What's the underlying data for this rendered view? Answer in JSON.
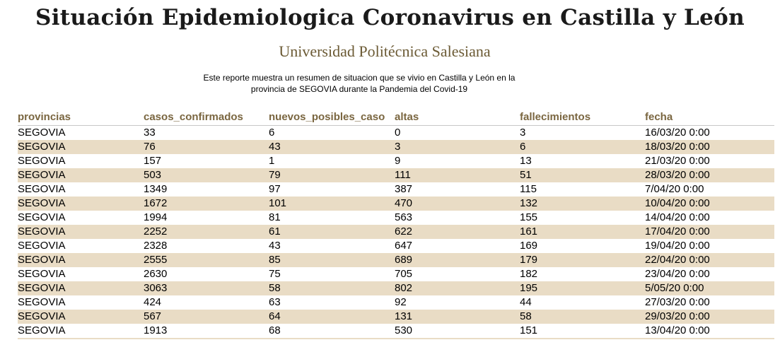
{
  "report": {
    "title": "Situación Epidemiologica Coronavirus en Castilla y León",
    "subtitle": "Universidad Politécnica Salesiana",
    "description_line1": "Este reporte muestra un resumen de situacion que se vivio en Castilla y León en la",
    "description_line2": "provincia de SEGOVIA durante la Pandemia del Covid-19"
  },
  "colors": {
    "header_text": "#7a6640",
    "subtitle_text": "#6b5a34",
    "alt_row_background": "#e9dcc5"
  },
  "table": {
    "columns": [
      "provincias",
      "casos_confirmados",
      "nuevos_posibles_caso",
      "altas",
      "fallecimientos",
      "fecha"
    ],
    "rows": [
      [
        "SEGOVIA",
        "33",
        "6",
        "0",
        "3",
        "16/03/20 0:00"
      ],
      [
        "SEGOVIA",
        "76",
        "43",
        "3",
        "6",
        "18/03/20 0:00"
      ],
      [
        "SEGOVIA",
        "157",
        "1",
        "9",
        "13",
        "21/03/20 0:00"
      ],
      [
        "SEGOVIA",
        "503",
        "79",
        "111",
        "51",
        "28/03/20 0:00"
      ],
      [
        "SEGOVIA",
        "1349",
        "97",
        "387",
        "115",
        "7/04/20 0:00"
      ],
      [
        "SEGOVIA",
        "1672",
        "101",
        "470",
        "132",
        "10/04/20 0:00"
      ],
      [
        "SEGOVIA",
        "1994",
        "81",
        "563",
        "155",
        "14/04/20 0:00"
      ],
      [
        "SEGOVIA",
        "2252",
        "61",
        "622",
        "161",
        "17/04/20 0:00"
      ],
      [
        "SEGOVIA",
        "2328",
        "43",
        "647",
        "169",
        "19/04/20 0:00"
      ],
      [
        "SEGOVIA",
        "2555",
        "85",
        "689",
        "179",
        "22/04/20 0:00"
      ],
      [
        "SEGOVIA",
        "2630",
        "75",
        "705",
        "182",
        "23/04/20 0:00"
      ],
      [
        "SEGOVIA",
        "3063",
        "58",
        "802",
        "195",
        "5/05/20 0:00"
      ],
      [
        "SEGOVIA",
        "424",
        "63",
        "92",
        "44",
        "27/03/20 0:00"
      ],
      [
        "SEGOVIA",
        "567",
        "64",
        "131",
        "58",
        "29/03/20 0:00"
      ],
      [
        "SEGOVIA",
        "1913",
        "68",
        "530",
        "151",
        "13/04/20 0:00"
      ]
    ]
  }
}
